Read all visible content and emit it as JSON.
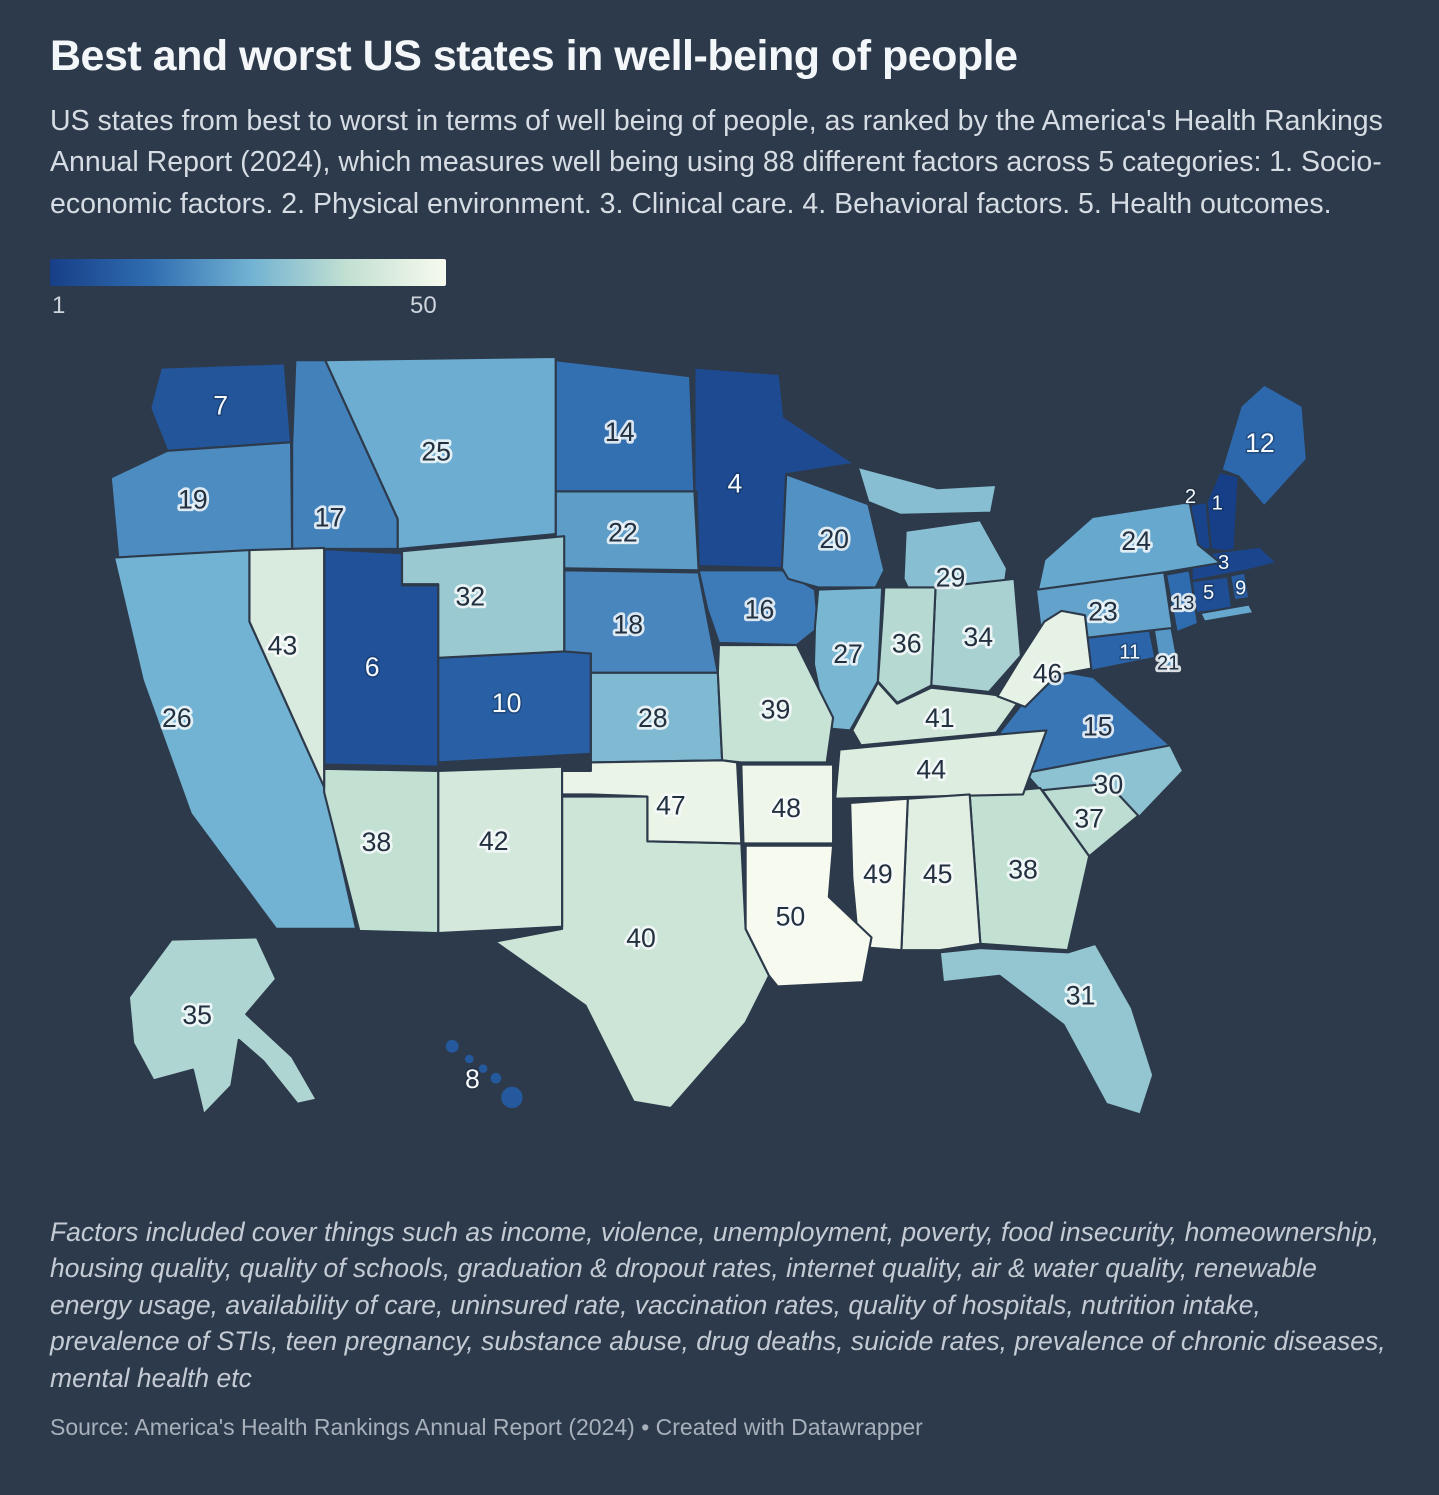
{
  "title": "Best and worst US states in well-being of people",
  "subtitle": "US states from best to worst in terms of well being of people, as ranked by the America's Health Rankings Annual Report (2024), which measures well being using 88 different factors across 5 categories: 1. Socio-economic factors. 2. Physical environment. 3. Clinical care. 4. Behavioral factors. 5. Health outcomes.",
  "legend": {
    "min_label": "1",
    "max_label": "50"
  },
  "footnote": "Factors included cover things such as income, violence, unemployment, poverty, food insecurity, homeownership, housing quality, quality of schools, graduation & dropout rates, internet quality, air & water quality, renewable energy usage, availability of care, uninsured rate, vaccination rates, quality of hospitals, nutrition intake, prevalence of STIs, teen pregnancy, substance abuse, drug deaths, suicide rates, prevalence of chronic diseases, mental health etc",
  "source": "Source: America's Health Rankings Annual Report (2024) • Created with Datawrapper",
  "colors": {
    "background": "#2d3a4b",
    "title": "#f4f7fa",
    "subtitle": "#d6dce3",
    "footnote": "#c4cbd4",
    "source": "#a7b0bb",
    "scale": [
      "#173f87",
      "#2f6cb0",
      "#6fb0d2",
      "#c2e0d2",
      "#f7faee"
    ]
  },
  "chart_data": {
    "type": "choropleth-map",
    "title": "Best and worst US states in well-being of people",
    "value_label": "Well-being rank (1 = best, 50 = worst)",
    "range": [
      1,
      50
    ],
    "legend": {
      "min": "1",
      "max": "50",
      "position": "top-left"
    },
    "states": [
      {
        "state": "New Hampshire",
        "abbr": "NH",
        "rank": 1
      },
      {
        "state": "Vermont",
        "abbr": "VT",
        "rank": 2
      },
      {
        "state": "Massachusetts",
        "abbr": "MA",
        "rank": 3
      },
      {
        "state": "Minnesota",
        "abbr": "MN",
        "rank": 4
      },
      {
        "state": "Connecticut",
        "abbr": "CT",
        "rank": 5
      },
      {
        "state": "Utah",
        "abbr": "UT",
        "rank": 6
      },
      {
        "state": "Washington",
        "abbr": "WA",
        "rank": 7
      },
      {
        "state": "Hawaii",
        "abbr": "HI",
        "rank": 8
      },
      {
        "state": "Rhode Island",
        "abbr": "RI",
        "rank": 9
      },
      {
        "state": "Colorado",
        "abbr": "CO",
        "rank": 10
      },
      {
        "state": "Maryland",
        "abbr": "MD",
        "rank": 11
      },
      {
        "state": "Maine",
        "abbr": "ME",
        "rank": 12
      },
      {
        "state": "New Jersey",
        "abbr": "NJ",
        "rank": 13
      },
      {
        "state": "North Dakota",
        "abbr": "ND",
        "rank": 14
      },
      {
        "state": "Virginia",
        "abbr": "VA",
        "rank": 15
      },
      {
        "state": "Iowa",
        "abbr": "IA",
        "rank": 16
      },
      {
        "state": "Idaho",
        "abbr": "ID",
        "rank": 17
      },
      {
        "state": "Nebraska",
        "abbr": "NE",
        "rank": 18
      },
      {
        "state": "Oregon",
        "abbr": "OR",
        "rank": 19
      },
      {
        "state": "Wisconsin",
        "abbr": "WI",
        "rank": 20
      },
      {
        "state": "Delaware",
        "abbr": "DE",
        "rank": 21
      },
      {
        "state": "South Dakota",
        "abbr": "SD",
        "rank": 22
      },
      {
        "state": "Pennsylvania",
        "abbr": "PA",
        "rank": 23
      },
      {
        "state": "New York",
        "abbr": "NY",
        "rank": 24
      },
      {
        "state": "Montana",
        "abbr": "MT",
        "rank": 25
      },
      {
        "state": "California",
        "abbr": "CA",
        "rank": 26
      },
      {
        "state": "Illinois",
        "abbr": "IL",
        "rank": 27
      },
      {
        "state": "Kansas",
        "abbr": "KS",
        "rank": 28
      },
      {
        "state": "Michigan",
        "abbr": "MI",
        "rank": 29
      },
      {
        "state": "North Carolina",
        "abbr": "NC",
        "rank": 30
      },
      {
        "state": "Florida",
        "abbr": "FL",
        "rank": 31
      },
      {
        "state": "Wyoming",
        "abbr": "WY",
        "rank": 32
      },
      {
        "state": "Ohio",
        "abbr": "OH",
        "rank": 34
      },
      {
        "state": "Alaska",
        "abbr": "AK",
        "rank": 35
      },
      {
        "state": "Indiana",
        "abbr": "IN",
        "rank": 36
      },
      {
        "state": "South Carolina",
        "abbr": "SC",
        "rank": 37
      },
      {
        "state": "Arizona",
        "abbr": "AZ",
        "rank": 38
      },
      {
        "state": "Georgia",
        "abbr": "GA",
        "rank": 38
      },
      {
        "state": "Missouri",
        "abbr": "MO",
        "rank": 39
      },
      {
        "state": "Texas",
        "abbr": "TX",
        "rank": 40
      },
      {
        "state": "Kentucky",
        "abbr": "KY",
        "rank": 41
      },
      {
        "state": "New Mexico",
        "abbr": "NM",
        "rank": 42
      },
      {
        "state": "Nevada",
        "abbr": "NV",
        "rank": 43
      },
      {
        "state": "Tennessee",
        "abbr": "TN",
        "rank": 44
      },
      {
        "state": "Alabama",
        "abbr": "AL",
        "rank": 45
      },
      {
        "state": "West Virginia",
        "abbr": "WV",
        "rank": 46
      },
      {
        "state": "Oklahoma",
        "abbr": "OK",
        "rank": 47
      },
      {
        "state": "Arkansas",
        "abbr": "AR",
        "rank": 48
      },
      {
        "state": "Mississippi",
        "abbr": "MS",
        "rank": 49
      },
      {
        "state": "Louisiana",
        "abbr": "LA",
        "rank": 50
      }
    ]
  }
}
